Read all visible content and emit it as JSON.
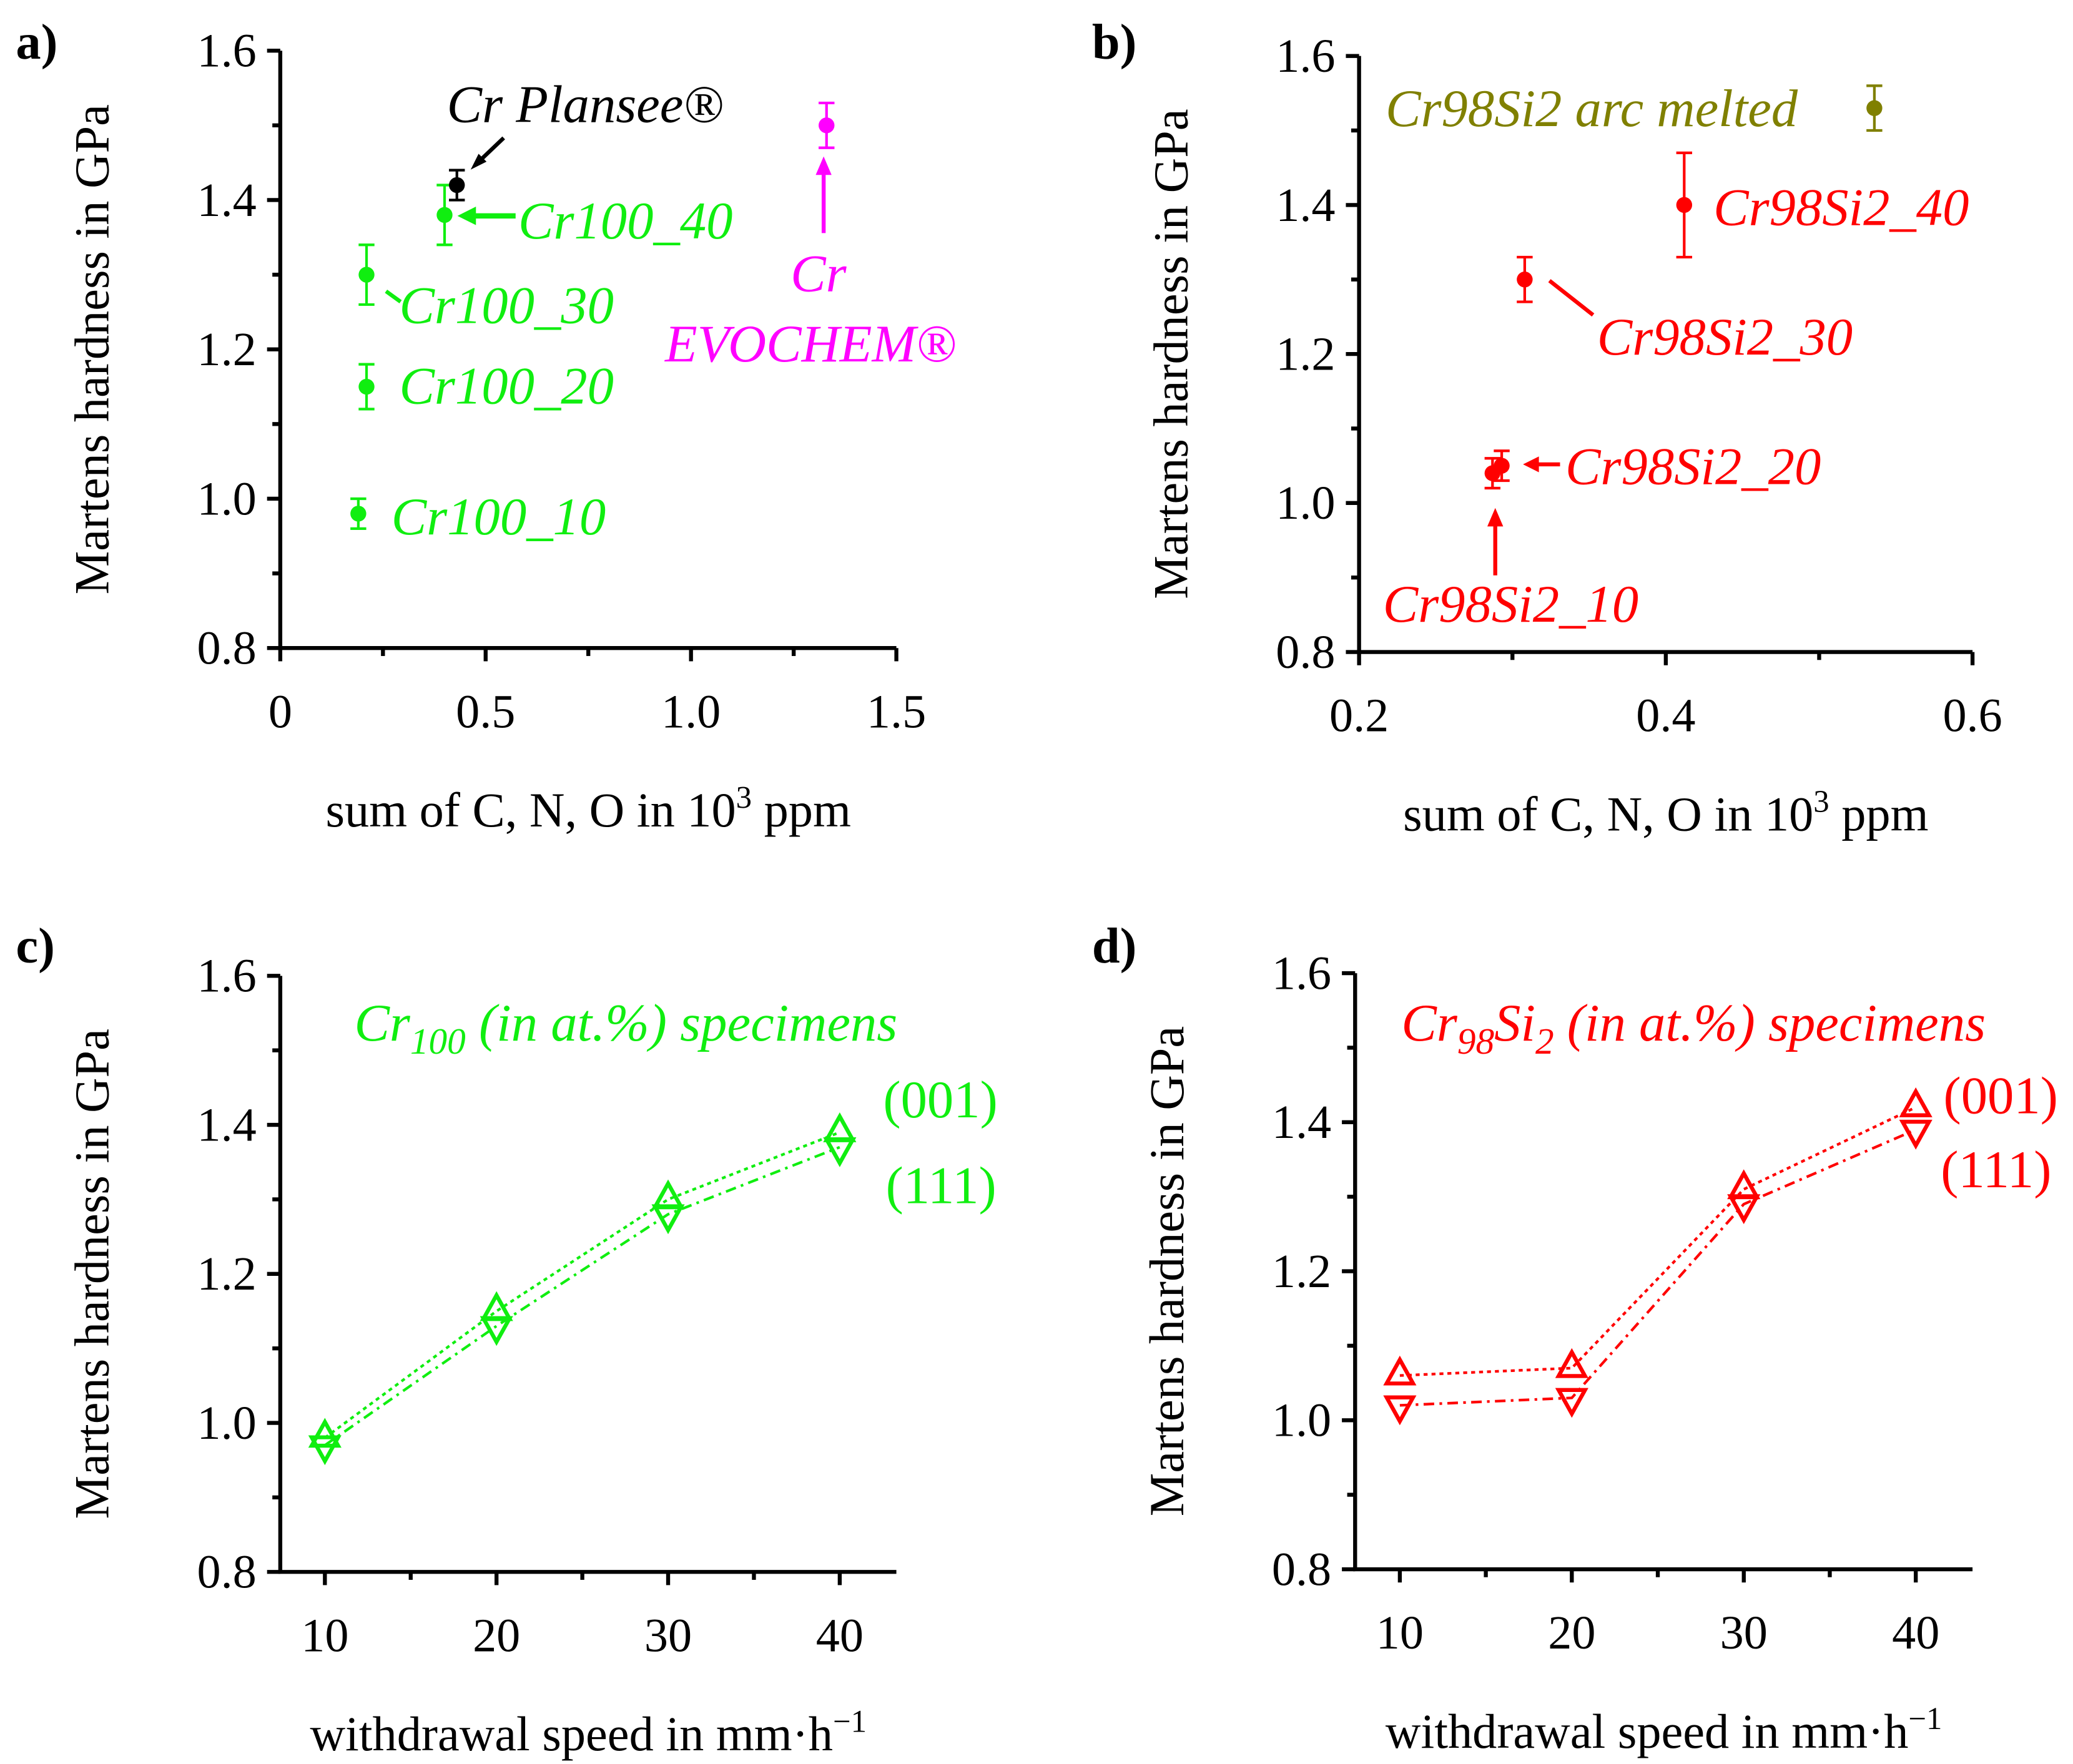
{
  "colors": {
    "green": "#10ee10",
    "magenta": "#ff00ff",
    "olive": "#808000",
    "red": "#ff0000",
    "black": "#000000"
  },
  "chart_data": [
    {
      "panel": "a)",
      "type": "scatter",
      "ylabel": "Martens hardness in GPa",
      "xlabel": "sum of C, N, O in 10",
      "xlabel_sup": "3",
      "xlabel_tail": " ppm",
      "xlim": [
        0,
        1.5
      ],
      "ylim": [
        0.8,
        1.6
      ],
      "xticks": [
        "0",
        "0.5",
        "1.0",
        "1.5"
      ],
      "xtickvals": [
        0,
        0.5,
        1.0,
        1.5
      ],
      "yticks": [
        "0.8",
        "1.0",
        "1.2",
        "1.4",
        "1.6"
      ],
      "points": [
        {
          "label": "Cr100_10",
          "x": 0.19,
          "y": 0.98,
          "err": 0.02,
          "color": "green"
        },
        {
          "label": "Cr100_20",
          "x": 0.21,
          "y": 1.15,
          "err": 0.03,
          "color": "green"
        },
        {
          "label": "Cr100_30",
          "x": 0.21,
          "y": 1.3,
          "err": 0.04,
          "color": "green"
        },
        {
          "label": "Cr100_40",
          "x": 0.4,
          "y": 1.38,
          "err": 0.04,
          "color": "green"
        },
        {
          "label": "Cr Plansee®",
          "x": 0.43,
          "y": 1.42,
          "err": 0.02,
          "color": "black"
        },
        {
          "label": "Cr EVOCHEM®",
          "x": 1.33,
          "y": 1.5,
          "err": 0.03,
          "color": "magenta"
        }
      ],
      "annotations": {
        "plansee": "Cr Plansee®",
        "c40": "Cr100_40",
        "c30": "Cr100_30",
        "c20": "Cr100_20",
        "c10": "Cr100_10",
        "evo1": "Cr",
        "evo2": "EVOCHEM®"
      }
    },
    {
      "panel": "b)",
      "type": "scatter",
      "ylabel": "Martens hardness in GPa",
      "xlabel": "sum of C, N, O in 10",
      "xlabel_sup": "3",
      "xlabel_tail": " ppm",
      "xlim": [
        0.2,
        0.6
      ],
      "ylim": [
        0.8,
        1.6
      ],
      "xticks": [
        "0.2",
        "0.4",
        "0.6"
      ],
      "xtickvals": [
        0.2,
        0.4,
        0.6
      ],
      "yticks": [
        "0.8",
        "1.0",
        "1.2",
        "1.4",
        "1.6"
      ],
      "points": [
        {
          "label": "Cr98Si2_10",
          "x": 0.287,
          "y": 1.04,
          "err": 0.02,
          "color": "red"
        },
        {
          "label": "Cr98Si2_20",
          "x": 0.293,
          "y": 1.05,
          "err": 0.02,
          "color": "red"
        },
        {
          "label": "Cr98Si2_30",
          "x": 0.308,
          "y": 1.3,
          "err": 0.03,
          "color": "red"
        },
        {
          "label": "Cr98Si2_40",
          "x": 0.412,
          "y": 1.4,
          "err": 0.07,
          "color": "red"
        },
        {
          "label": "Cr98Si2 arc melted",
          "x": 0.536,
          "y": 1.53,
          "err": 0.03,
          "color": "olive"
        }
      ],
      "annotations": {
        "arc": "Cr98Si2 arc melted",
        "c40": "Cr98Si2_40",
        "c30": "Cr98Si2_30",
        "c20": "Cr98Si2_20",
        "c10": "Cr98Si2_10"
      }
    },
    {
      "panel": "c)",
      "type": "line",
      "ylabel": "Martens hardness in GPa",
      "xlabel": "withdrawal speed in mm·h",
      "xlabel_sup": "−1",
      "xlim": [
        7.4,
        43.3
      ],
      "ylim": [
        0.8,
        1.6
      ],
      "xticks": [
        "10",
        "20",
        "30",
        "40"
      ],
      "xtickvals": [
        10,
        20,
        30,
        40
      ],
      "yticks": [
        "0.8",
        "1.0",
        "1.2",
        "1.4",
        "1.6"
      ],
      "x": [
        10,
        20,
        30,
        40
      ],
      "color": "green",
      "series": [
        {
          "name": "(001)",
          "marker": "up",
          "values": [
            0.98,
            1.15,
            1.3,
            1.39
          ]
        },
        {
          "name": "(111)",
          "marker": "down",
          "values": [
            0.97,
            1.13,
            1.28,
            1.37
          ]
        }
      ],
      "title_main": "Cr",
      "title_sub": "100",
      "title_tail": " (in at.%) specimens"
    },
    {
      "panel": "d)",
      "type": "line",
      "ylabel": "Martens hardness in GPa",
      "xlabel": "withdrawal speed in mm·h",
      "xlabel_sup": "−1",
      "xlim": [
        7.4,
        43.3
      ],
      "ylim": [
        0.8,
        1.6
      ],
      "xticks": [
        "10",
        "20",
        "30",
        "40"
      ],
      "xtickvals": [
        10,
        20,
        30,
        40
      ],
      "yticks": [
        "0.8",
        "1.0",
        "1.2",
        "1.4",
        "1.6"
      ],
      "x": [
        10,
        20,
        30,
        40
      ],
      "color": "red",
      "series": [
        {
          "name": "(001)",
          "marker": "up",
          "values": [
            1.06,
            1.07,
            1.31,
            1.42
          ]
        },
        {
          "name": "(111)",
          "marker": "down",
          "values": [
            1.02,
            1.03,
            1.29,
            1.39
          ]
        }
      ],
      "title_main": "Cr",
      "title_sub": "98",
      "title_mid": "Si",
      "title_sub2": "2",
      "title_tail": " (in at.%) specimens"
    }
  ]
}
